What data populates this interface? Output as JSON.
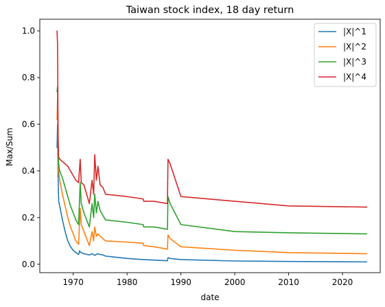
{
  "chart_data": {
    "type": "line",
    "title": "Taiwan stock index, 18 day return",
    "xlabel": "date",
    "ylabel": "Max/Sum",
    "xlim": [
      1963.8,
      2027.0
    ],
    "ylim": [
      -0.036,
      1.05
    ],
    "xticks": [
      1970,
      1980,
      1990,
      2000,
      2010,
      2020
    ],
    "xtick_labels": [
      "1970",
      "1980",
      "1990",
      "2000",
      "2010",
      "2020"
    ],
    "yticks": [
      0.0,
      0.2,
      0.4,
      0.6,
      0.8,
      1.0
    ],
    "ytick_labels": [
      "0.0",
      "0.2",
      "0.4",
      "0.6",
      "0.8",
      "1.0"
    ],
    "grid": false,
    "legend_position": "top-right",
    "series": [
      {
        "name": "|X|^1",
        "color": "#1f77b4",
        "x": [
          1967.0,
          1967.1,
          1967.2,
          1967.3,
          1967.5,
          1968.0,
          1968.5,
          1969.0,
          1969.5,
          1970.0,
          1970.5,
          1971.0,
          1971.2,
          1971.3,
          1971.5,
          1972.0,
          1973.0,
          1973.5,
          1974.0,
          1974.5,
          1975.0,
          1975.5,
          1976.0,
          1978.0,
          1980.0,
          1983.0,
          1985.0,
          1987.5,
          1987.6,
          1988.0,
          1990.0,
          2000.0,
          2010.0,
          2024.5
        ],
        "y": [
          0.5,
          0.6,
          0.38,
          0.27,
          0.25,
          0.19,
          0.14,
          0.1,
          0.075,
          0.06,
          0.05,
          0.042,
          0.058,
          0.052,
          0.05,
          0.045,
          0.04,
          0.045,
          0.038,
          0.045,
          0.042,
          0.04,
          0.035,
          0.03,
          0.025,
          0.02,
          0.018,
          0.015,
          0.028,
          0.025,
          0.02,
          0.014,
          0.012,
          0.01
        ]
      },
      {
        "name": "|X|^2",
        "color": "#ff7f0e",
        "x": [
          1967.0,
          1967.1,
          1967.2,
          1967.3,
          1967.5,
          1968.0,
          1968.5,
          1969.0,
          1969.5,
          1970.0,
          1970.5,
          1971.0,
          1971.3,
          1971.5,
          1972.0,
          1973.0,
          1973.5,
          1973.8,
          1974.0,
          1974.3,
          1974.6,
          1975.0,
          1975.5,
          1976.0,
          1980.0,
          1983.0,
          1983.1,
          1985.0,
          1987.5,
          1987.6,
          1988.0,
          1990.0,
          2000.0,
          2010.0,
          2024.5
        ],
        "y": [
          0.62,
          0.71,
          0.47,
          0.4,
          0.36,
          0.3,
          0.25,
          0.2,
          0.16,
          0.13,
          0.1,
          0.085,
          0.24,
          0.17,
          0.14,
          0.08,
          0.14,
          0.1,
          0.16,
          0.12,
          0.13,
          0.12,
          0.11,
          0.1,
          0.095,
          0.09,
          0.08,
          0.075,
          0.065,
          0.125,
          0.11,
          0.075,
          0.06,
          0.05,
          0.045
        ]
      },
      {
        "name": "|X|^3",
        "color": "#2ca02c",
        "x": [
          1967.0,
          1967.1,
          1967.2,
          1967.3,
          1967.5,
          1968.0,
          1968.5,
          1969.0,
          1969.5,
          1970.0,
          1970.5,
          1971.0,
          1971.3,
          1971.5,
          1972.0,
          1973.0,
          1973.5,
          1973.8,
          1974.0,
          1974.3,
          1974.6,
          1975.0,
          1975.5,
          1976.0,
          1980.0,
          1983.0,
          1983.1,
          1985.0,
          1987.5,
          1987.6,
          1988.0,
          1990.0,
          2000.0,
          2010.0,
          2024.5
        ],
        "y": [
          0.74,
          0.76,
          0.48,
          0.43,
          0.4,
          0.37,
          0.33,
          0.29,
          0.25,
          0.22,
          0.19,
          0.17,
          0.35,
          0.26,
          0.22,
          0.16,
          0.26,
          0.2,
          0.3,
          0.22,
          0.27,
          0.23,
          0.21,
          0.19,
          0.18,
          0.17,
          0.16,
          0.16,
          0.15,
          0.29,
          0.26,
          0.17,
          0.14,
          0.135,
          0.13
        ]
      },
      {
        "name": "|X|^4",
        "color": "#d62728",
        "x": [
          1967.0,
          1967.1,
          1967.2,
          1967.3,
          1967.5,
          1968.0,
          1968.5,
          1969.0,
          1969.5,
          1970.0,
          1970.5,
          1971.0,
          1971.3,
          1971.5,
          1972.0,
          1973.0,
          1973.5,
          1973.8,
          1974.0,
          1974.3,
          1974.6,
          1975.0,
          1975.5,
          1976.0,
          1980.0,
          1983.0,
          1983.1,
          1985.0,
          1987.5,
          1987.6,
          1988.0,
          1990.0,
          2000.0,
          2010.0,
          2024.5
        ],
        "y": [
          1.0,
          0.94,
          0.55,
          0.46,
          0.45,
          0.44,
          0.43,
          0.42,
          0.4,
          0.38,
          0.36,
          0.35,
          0.45,
          0.35,
          0.34,
          0.26,
          0.36,
          0.3,
          0.47,
          0.36,
          0.42,
          0.34,
          0.33,
          0.3,
          0.29,
          0.28,
          0.27,
          0.27,
          0.26,
          0.45,
          0.43,
          0.29,
          0.27,
          0.25,
          0.245
        ]
      }
    ]
  }
}
